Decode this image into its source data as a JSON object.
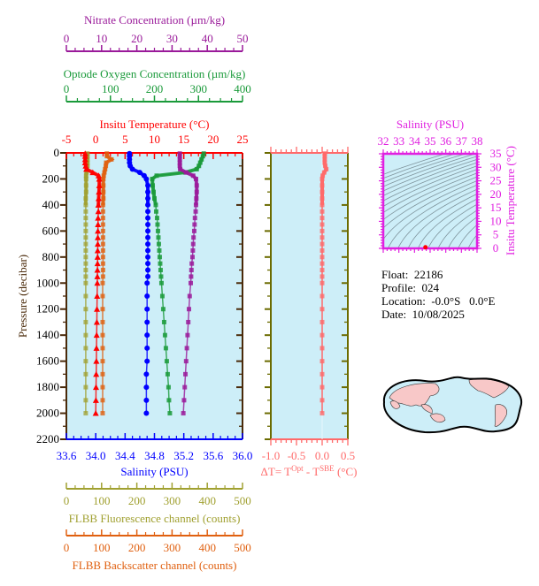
{
  "chart_data": {
    "type": "line",
    "pressure_axis": {
      "label": "Pressure (decibar)",
      "range": [
        0,
        2200
      ],
      "reversed": true,
      "tick_labels": [
        "0",
        "200",
        "400",
        "600",
        "800",
        "1000",
        "1200",
        "1400",
        "1600",
        "1800",
        "2000",
        "2200"
      ],
      "color": "#4a2a0a"
    },
    "axes": {
      "nitrate": {
        "label": "Nitrate Concentration (µm/kg)",
        "range": [
          0,
          50
        ],
        "tick_labels": [
          "0",
          "10",
          "20",
          "30",
          "40",
          "50"
        ],
        "color": "#9a1a9a"
      },
      "oxygen": {
        "label": "Optode Oxygen Concentration (µm/kg)",
        "range": [
          0,
          400
        ],
        "tick_labels": [
          "0",
          "100",
          "200",
          "300",
          "400"
        ],
        "color": "#1a9a3a"
      },
      "temperature": {
        "label": "Insitu Temperature (°C)",
        "range": [
          -5,
          25
        ],
        "tick_labels": [
          "-5",
          "0",
          "5",
          "10",
          "15",
          "20",
          "25"
        ],
        "color": "#ff0000"
      },
      "salinity": {
        "label": "Salinity (PSU)",
        "range": [
          33.6,
          36.0
        ],
        "tick_labels": [
          "33.6",
          "34.0",
          "34.4",
          "34.8",
          "35.2",
          "35.6",
          "36.0"
        ],
        "color": "#0000ff"
      },
      "fluorescence": {
        "label": "FLBB Fluorescence channel (counts)",
        "range": [
          0,
          500
        ],
        "tick_labels": [
          "0",
          "100",
          "200",
          "300",
          "400",
          "500"
        ],
        "color": "#a0a030"
      },
      "backscatter": {
        "label": "FLBB Backscatter channel (counts)",
        "range": [
          0,
          500
        ],
        "tick_labels": [
          "0",
          "100",
          "200",
          "300",
          "400",
          "500"
        ],
        "color": "#e06010"
      }
    },
    "pressure": [
      5,
      25,
      50,
      75,
      100,
      125,
      150,
      175,
      200,
      250,
      300,
      350,
      400,
      450,
      500,
      550,
      600,
      650,
      700,
      750,
      800,
      850,
      900,
      950,
      1000,
      1100,
      1200,
      1300,
      1400,
      1500,
      1600,
      1700,
      1800,
      1900,
      2000
    ],
    "series": [
      {
        "axis": "fluorescence",
        "marker": "square",
        "values": [
          60,
          60,
          60,
          60,
          60,
          58,
          57,
          56,
          56,
          56,
          56,
          55,
          55,
          55,
          55,
          55,
          55,
          55,
          55,
          55,
          55,
          55,
          55,
          55,
          55,
          55,
          55,
          55,
          55,
          55,
          55,
          55,
          55,
          55,
          55
        ]
      },
      {
        "axis": "backscatter",
        "marker": "square",
        "values": [
          115,
          115,
          128,
          113,
          112,
          110,
          108,
          106,
          105,
          105,
          105,
          105,
          104,
          104,
          104,
          104,
          104,
          104,
          104,
          104,
          104,
          104,
          104,
          104,
          103,
          103,
          103,
          103,
          103,
          103,
          103,
          103,
          103,
          103,
          103
        ]
      },
      {
        "axis": "temperature",
        "marker": "triangle",
        "values": [
          -1.8,
          -1.8,
          -1.8,
          -1.8,
          -1.7,
          -1.6,
          -0.5,
          0.5,
          0.6,
          0.6,
          0.55,
          0.5,
          0.45,
          0.45,
          0.4,
          0.39,
          0.37,
          0.36,
          0.35,
          0.33,
          0.32,
          0.31,
          0.29,
          0.28,
          0.27,
          0.24,
          0.21,
          0.19,
          0.16,
          0.13,
          0.11,
          0.08,
          0.05,
          0.03,
          0.0
        ]
      },
      {
        "axis": "salinity",
        "marker": "circle",
        "values": [
          34.46,
          34.46,
          34.46,
          34.46,
          34.47,
          34.5,
          34.6,
          34.66,
          34.69,
          34.71,
          34.71,
          34.71,
          34.71,
          34.71,
          34.71,
          34.71,
          34.71,
          34.71,
          34.71,
          34.71,
          34.71,
          34.71,
          34.71,
          34.71,
          34.7,
          34.7,
          34.7,
          34.7,
          34.7,
          34.7,
          34.7,
          34.69,
          34.69,
          34.69,
          34.69
        ]
      },
      {
        "axis": "oxygen",
        "marker": "square",
        "values": [
          312,
          310,
          307,
          304,
          301,
          296,
          270,
          205,
          195,
          196,
          198,
          200,
          203,
          204,
          206,
          207,
          208,
          209,
          210,
          211,
          212,
          213,
          214,
          215,
          216,
          218,
          220,
          222,
          224,
          226,
          228,
          230,
          232,
          233,
          235
        ]
      },
      {
        "axis": "nitrate",
        "marker": "square",
        "values": [
          32.2,
          32.2,
          32.2,
          32.2,
          32.2,
          32.3,
          34,
          36,
          36.8,
          37,
          37,
          36.9,
          36.8,
          36.7,
          36.5,
          36.4,
          36.3,
          36.1,
          36,
          35.9,
          35.8,
          35.6,
          35.5,
          35.4,
          35.3,
          35,
          34.8,
          34.6,
          34.4,
          34.2,
          34,
          33.8,
          33.6,
          33.4,
          33.2
        ]
      }
    ],
    "delta_t": {
      "label_prefix": "ΔT= T",
      "label_sup1": "Opt",
      "label_mid": " - T",
      "label_sup2": "SBE",
      "label_suffix": " (°C)",
      "range": [
        -1.0,
        0.5
      ],
      "tick_labels": [
        "-1.0",
        "-0.5",
        "0.0",
        "0.5"
      ],
      "color": "#ff6a6a",
      "values": [
        0.05,
        0.05,
        0.05,
        0.05,
        0.06,
        0.08,
        0.04,
        0.01,
        0.0,
        0.0,
        0.0,
        0.0,
        0.0,
        0.0,
        0.0,
        0.0,
        0.0,
        0.0,
        0.0,
        0.0,
        0.0,
        0.0,
        0.0,
        0.0,
        0.0,
        0.0,
        0.0,
        0.0,
        0.0,
        0.0,
        0.0,
        0.0,
        0.0,
        0.0,
        0.0
      ]
    },
    "ts_inset": {
      "type": "scatter",
      "xlabel": "Salinity (PSU)",
      "ylabel": "Insitu Temperature (°C)",
      "xlim": [
        32,
        38
      ],
      "ylim": [
        0,
        35
      ],
      "x_tick_labels": [
        "32",
        "33",
        "34",
        "35",
        "36",
        "37",
        "38"
      ],
      "y_tick_labels": [
        "0",
        "5",
        "10",
        "15",
        "20",
        "25",
        "30",
        "35"
      ],
      "color": "#e020e0",
      "points": [
        [
          34.7,
          0.4
        ]
      ]
    }
  },
  "info": {
    "float": "Float:  22186",
    "profile": "Profile:  024",
    "location": "Location:  -0.0°S   0.0°E",
    "date": "Date:  10/08/2025"
  },
  "colors": {
    "plot_background": "#cdeef8",
    "middle_panel_frame": "#6b6b00",
    "map_land": "#f8c8c8",
    "map_ocean": "#cdeef8"
  }
}
